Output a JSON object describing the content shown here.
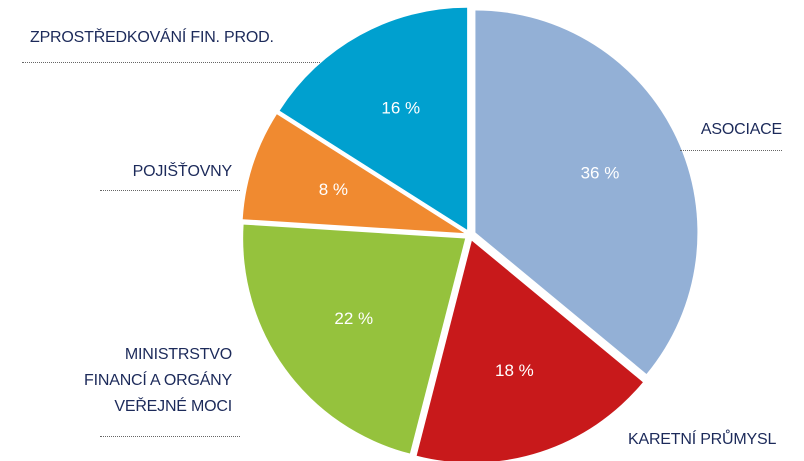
{
  "chart_data": {
    "type": "pie",
    "categories": [
      "ASOCIACE",
      "KARETNÍ PRŮMYSL",
      "MINISTRSTVO\nFINANCÍ A ORGÁNY\nVEŘEJNÉ MOCI",
      "POJIŠŤOVNY",
      "ZPROSTŘEDKOVÁNÍ FIN. PROD."
    ],
    "values": [
      36,
      18,
      22,
      8,
      16
    ],
    "value_labels": [
      "36 %",
      "18 %",
      "22 %",
      "8 %",
      "16 %"
    ],
    "colors": [
      "#93b0d6",
      "#c8191b",
      "#95c23d",
      "#f08a30",
      "#00a0cf"
    ]
  }
}
